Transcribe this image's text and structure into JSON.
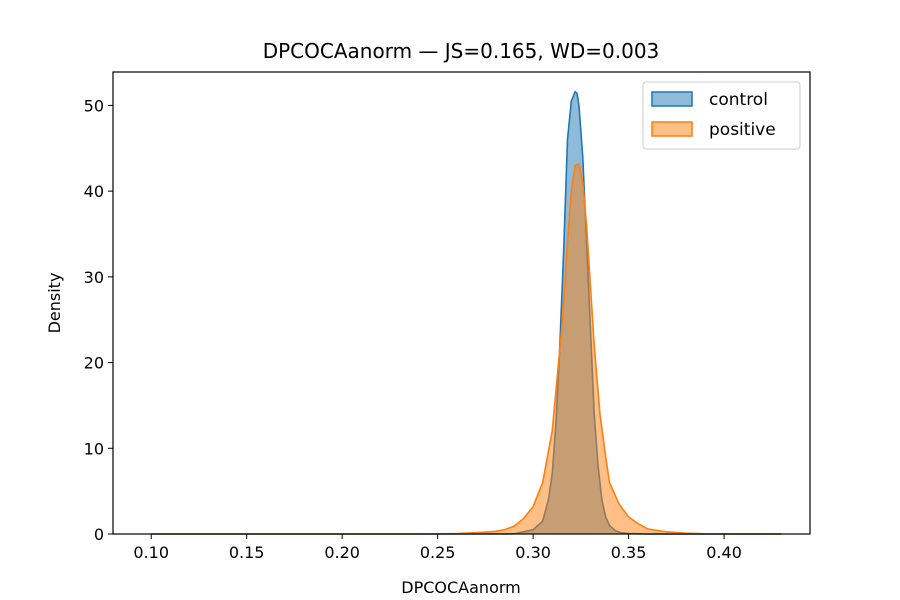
{
  "chart_data": {
    "type": "area",
    "title": "DPCOCAanorm — JS=0.165, WD=0.003",
    "xlabel": "DPCOCAanorm",
    "ylabel": "Density",
    "xlim": [
      0.08,
      0.445
    ],
    "ylim": [
      0,
      53.9
    ],
    "xticks": [
      0.1,
      0.15,
      0.2,
      0.25,
      0.3,
      0.35,
      0.4
    ],
    "xtick_labels": [
      "0.10",
      "0.15",
      "0.20",
      "0.25",
      "0.30",
      "0.35",
      "0.40"
    ],
    "yticks": [
      0,
      10,
      20,
      30,
      40,
      50
    ],
    "ytick_labels": [
      "0",
      "10",
      "20",
      "30",
      "40",
      "50"
    ],
    "grid": false,
    "legend_position": "top-right",
    "series": [
      {
        "name": "control",
        "color": "#1f77b4",
        "x": [
          0.1,
          0.25,
          0.29,
          0.3,
          0.305,
          0.308,
          0.31,
          0.312,
          0.314,
          0.316,
          0.318,
          0.32,
          0.322,
          0.323,
          0.324,
          0.326,
          0.328,
          0.33,
          0.332,
          0.334,
          0.336,
          0.338,
          0.34,
          0.343,
          0.346,
          0.35,
          0.36,
          0.38,
          0.43
        ],
        "y": [
          0,
          0,
          0.02,
          0.5,
          1.5,
          4,
          7,
          13,
          22,
          33,
          46,
          50.5,
          51.6,
          51.4,
          50,
          44,
          34,
          24,
          14,
          8,
          4,
          2,
          1,
          0.4,
          0.15,
          0.05,
          0,
          0,
          0
        ]
      },
      {
        "name": "positive",
        "color": "#ff7f0e",
        "x": [
          0.1,
          0.24,
          0.26,
          0.27,
          0.28,
          0.285,
          0.29,
          0.295,
          0.3,
          0.305,
          0.31,
          0.315,
          0.318,
          0.32,
          0.322,
          0.324,
          0.326,
          0.328,
          0.33,
          0.332,
          0.335,
          0.338,
          0.34,
          0.345,
          0.35,
          0.355,
          0.36,
          0.37,
          0.38,
          0.39,
          0.4,
          0.43
        ],
        "y": [
          0,
          0,
          0.05,
          0.15,
          0.3,
          0.5,
          0.9,
          1.8,
          3.2,
          6,
          12,
          24,
          34,
          40,
          43,
          43.2,
          41,
          36,
          29,
          22,
          14,
          9,
          6,
          3.5,
          2,
          1.2,
          0.6,
          0.25,
          0.1,
          0.03,
          0.01,
          0
        ]
      }
    ]
  }
}
